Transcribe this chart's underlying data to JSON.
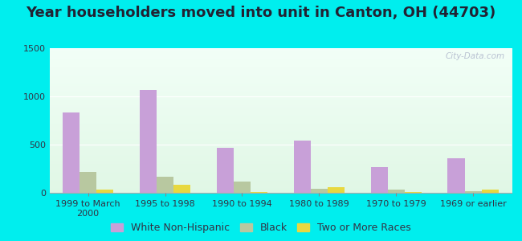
{
  "title": "Year householders moved into unit in Canton, OH (44703)",
  "categories": [
    "1999 to March\n2000",
    "1995 to 1998",
    "1990 to 1994",
    "1980 to 1989",
    "1970 to 1979",
    "1969 or earlier"
  ],
  "white_non_hispanic": [
    830,
    1065,
    470,
    545,
    265,
    360
  ],
  "black": [
    220,
    170,
    115,
    45,
    30,
    15
  ],
  "two_or_more_races": [
    35,
    80,
    10,
    60,
    10,
    30
  ],
  "white_color": "#c8a0d8",
  "black_color": "#b8c8a0",
  "two_more_color": "#e8d840",
  "ylim": [
    0,
    1500
  ],
  "yticks": [
    0,
    500,
    1000,
    1500
  ],
  "outer_bg": "#00eeee",
  "watermark": "City-Data.com",
  "bar_width": 0.22,
  "title_fontsize": 13,
  "legend_fontsize": 9,
  "tick_fontsize": 8
}
